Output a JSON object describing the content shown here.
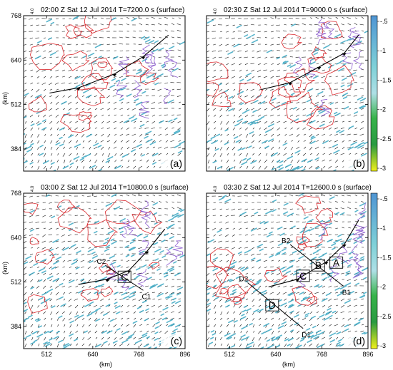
{
  "figure": {
    "units_label": "(km)",
    "colorbar": {
      "ticks": [
        "-.5",
        "-1",
        "-1.5",
        "-2",
        "-2.5",
        "-3"
      ],
      "colors": [
        "#5a9bd5",
        "#7fd1d8",
        "#b8e6ea",
        "#37b34a",
        "#1f8a3c",
        "#f0f01a"
      ]
    },
    "colors": {
      "contour_red": "#d9262b",
      "contour_purple": "#8f5fd0",
      "cyan_wind": "#3aa7c3",
      "vectors": "#111111"
    }
  },
  "chart_data": [
    {
      "type": "vector-field",
      "panel_label": "(a)",
      "title": "02:00 Z Sat 12 Jul 2014 T=7200.0 s (surface)",
      "corner_tag": "4.0",
      "y_ticks": [
        "768",
        "640",
        "512",
        "384"
      ],
      "x_ticks": [],
      "ylim": [
        320,
        768
      ],
      "xlim": [
        448,
        896
      ],
      "front": {
        "points": [
          [
            520,
            545
          ],
          [
            600,
            560
          ],
          [
            700,
            600
          ],
          [
            780,
            650
          ],
          [
            850,
            712
          ]
        ]
      },
      "annotations": []
    },
    {
      "type": "vector-field",
      "panel_label": "(b)",
      "title": "02:30 Z Sat 12 Jul 2014 T=9000.0 s (surface)",
      "corner_tag": "4.0",
      "y_ticks": [],
      "x_ticks": [],
      "ylim": [
        320,
        768
      ],
      "xlim": [
        448,
        896
      ],
      "front": {
        "points": [
          [
            600,
            555
          ],
          [
            680,
            575
          ],
          [
            760,
            620
          ],
          [
            830,
            660
          ],
          [
            870,
            712
          ]
        ]
      },
      "annotations": []
    },
    {
      "type": "vector-field",
      "panel_label": "(c)",
      "title": "03:00 Z Sat 12 Jul 2014 T=10800.0 s (surface)",
      "corner_tag": "4.0",
      "y_ticks": [
        "768",
        "640",
        "512",
        "384"
      ],
      "x_ticks": [
        "512",
        "640",
        "768",
        "896"
      ],
      "ylim": [
        320,
        768
      ],
      "xlim": [
        448,
        896
      ],
      "front": {
        "points": [
          [
            600,
            505
          ],
          [
            680,
            520
          ],
          [
            740,
            545
          ],
          [
            790,
            600
          ],
          [
            840,
            665
          ]
        ]
      },
      "annotations": [
        {
          "kind": "line",
          "from": [
            675,
            560
          ],
          "to": [
            780,
            488
          ],
          "labels": [
            "C2",
            "C1"
          ]
        },
        {
          "kind": "box",
          "label": "C",
          "center": [
            728,
            527
          ]
        }
      ]
    },
    {
      "type": "vector-field",
      "panel_label": "(d)",
      "title": "03:30 Z Sat 12 Jul 2014 T=12600.0 s (surface)",
      "corner_tag": "4.0",
      "y_ticks": [],
      "x_ticks": [
        "512",
        "640",
        "768",
        "896"
      ],
      "ylim": [
        320,
        768
      ],
      "xlim": [
        448,
        896
      ],
      "front": {
        "points": [
          [
            620,
            498
          ],
          [
            700,
            520
          ],
          [
            780,
            570
          ],
          [
            830,
            620
          ],
          [
            870,
            690
          ]
        ]
      },
      "annotations": [
        {
          "kind": "line",
          "from": [
            680,
            620
          ],
          "to": [
            828,
            500
          ],
          "labels": [
            "B2",
            "B1"
          ]
        },
        {
          "kind": "line",
          "from": [
            562,
            510
          ],
          "to": [
            716,
            378
          ],
          "labels": [
            "D2",
            "D1"
          ]
        },
        {
          "kind": "box",
          "label": "A",
          "center": [
            808,
            568
          ]
        },
        {
          "kind": "box",
          "label": "B",
          "center": [
            758,
            560
          ]
        },
        {
          "kind": "box",
          "label": "C",
          "center": [
            716,
            530
          ]
        },
        {
          "kind": "box",
          "label": "D",
          "center": [
            630,
            445
          ]
        }
      ]
    }
  ]
}
